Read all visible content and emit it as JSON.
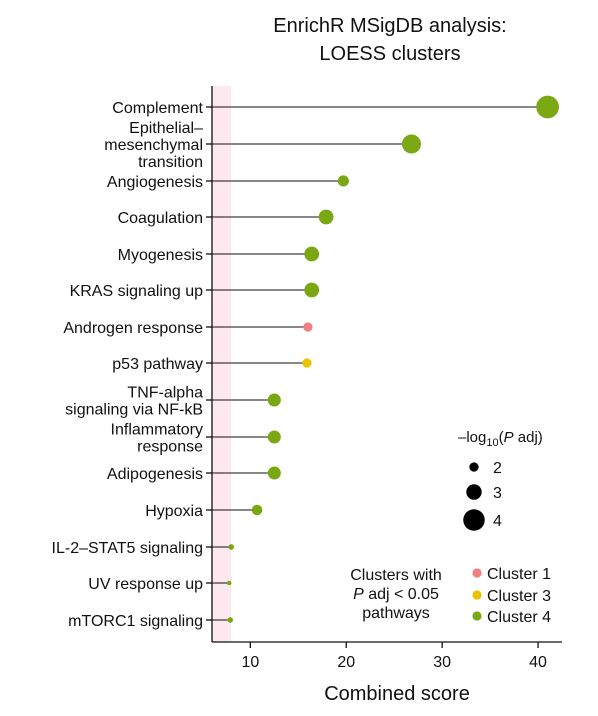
{
  "title": [
    "EnrichR MSigDB analysis:",
    "LOESS clusters"
  ],
  "chart_data": {
    "type": "scatter",
    "style": "lollipop",
    "xlabel": "Combined score",
    "ylabel": "",
    "xlim": [
      6,
      42.5
    ],
    "xticks": [
      10,
      20,
      30,
      40
    ],
    "shaded_band_x": [
      6,
      8
    ],
    "shaded_band_color": "#fde8f0",
    "categories": [
      {
        "label": [
          "Complement"
        ],
        "value": 41,
        "cluster": "Cluster 4",
        "neglog10_padj": 4.2
      },
      {
        "label": [
          "Epithelial–",
          "mesenchymal",
          "transition"
        ],
        "value": 26.8,
        "cluster": "Cluster 4",
        "neglog10_padj": 3.6
      },
      {
        "label": [
          "Angiogenesis"
        ],
        "value": 19.7,
        "cluster": "Cluster 4",
        "neglog10_padj": 2.3
      },
      {
        "label": [
          "Coagulation"
        ],
        "value": 17.9,
        "cluster": "Cluster 4",
        "neglog10_padj": 2.9
      },
      {
        "label": [
          "Myogenesis"
        ],
        "value": 16.4,
        "cluster": "Cluster 4",
        "neglog10_padj": 2.9
      },
      {
        "label": [
          "KRAS signaling up"
        ],
        "value": 16.4,
        "cluster": "Cluster 4",
        "neglog10_padj": 2.9
      },
      {
        "label": [
          "Androgen response"
        ],
        "value": 16.0,
        "cluster": "Cluster 1",
        "neglog10_padj": 2.0
      },
      {
        "label": [
          "p53 pathway"
        ],
        "value": 15.9,
        "cluster": "Cluster 3",
        "neglog10_padj": 2.0
      },
      {
        "label": [
          "TNF-alpha",
          "signaling via NF-kB"
        ],
        "value": 12.5,
        "cluster": "Cluster 4",
        "neglog10_padj": 2.6
      },
      {
        "label": [
          "Inflammatory",
          "response"
        ],
        "value": 12.5,
        "cluster": "Cluster 4",
        "neglog10_padj": 2.6
      },
      {
        "label": [
          "Adipogenesis"
        ],
        "value": 12.5,
        "cluster": "Cluster 4",
        "neglog10_padj": 2.6
      },
      {
        "label": [
          "Hypoxia"
        ],
        "value": 10.7,
        "cluster": "Cluster 4",
        "neglog10_padj": 2.2
      },
      {
        "label": [
          "IL-2–STAT5 signaling"
        ],
        "value": 8.0,
        "cluster": "Cluster 4",
        "neglog10_padj": 1.4
      },
      {
        "label": [
          "UV response up"
        ],
        "value": 7.8,
        "cluster": "Cluster 4",
        "neglog10_padj": 1.2
      },
      {
        "label": [
          "mTORC1 signaling"
        ],
        "value": 7.9,
        "cluster": "Cluster 4",
        "neglog10_padj": 1.4
      }
    ],
    "size_legend": {
      "title_prefix": "–log",
      "title_sub": "10",
      "title_suffix_open": "(",
      "title_italic": "P",
      "title_suffix": " adj)",
      "entries": [
        {
          "label": "2",
          "value": 2
        },
        {
          "label": "3",
          "value": 3
        },
        {
          "label": "4",
          "value": 4
        }
      ]
    },
    "color_legend": {
      "title": [
        "Clusters with",
        "P adj < 0.05",
        "pathways"
      ],
      "entries": [
        {
          "label": "Cluster 1",
          "color": "#f08080"
        },
        {
          "label": "Cluster 3",
          "color": "#e8c400"
        },
        {
          "label": "Cluster 4",
          "color": "#7aa812"
        }
      ]
    },
    "colors": {
      "Cluster 1": "#f08080",
      "Cluster 3": "#e8c400",
      "Cluster 4": "#7aa812"
    }
  }
}
